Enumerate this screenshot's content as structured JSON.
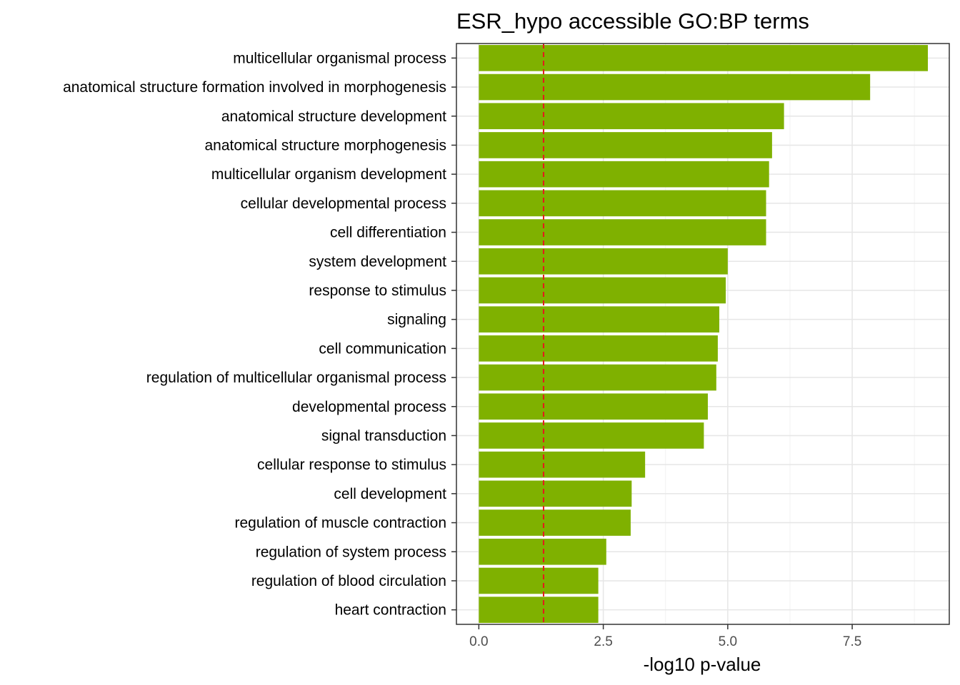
{
  "chart_data": {
    "type": "bar",
    "orientation": "horizontal",
    "title": "ESR_hypo accessible GO:BP terms",
    "xlabel": "-log10 p-value",
    "ylabel": "",
    "xlim": [
      -0.45,
      9.45
    ],
    "xticks": [
      0.0,
      2.5,
      5.0,
      7.5
    ],
    "xtick_labels": [
      "0.0",
      "2.5",
      "5.0",
      "7.5"
    ],
    "grid": true,
    "bar_color": "#7FB100",
    "reference_line": {
      "x": 1.3,
      "color": "#E41A1C",
      "style": "dashed"
    },
    "categories": [
      "multicellular organismal process",
      "anatomical structure formation involved in morphogenesis",
      "anatomical structure development",
      "anatomical structure morphogenesis",
      "multicellular organism development",
      "cellular developmental process",
      "cell differentiation",
      "system development",
      "response to stimulus",
      "signaling",
      "cell communication",
      "regulation of multicellular organismal process",
      "developmental process",
      "signal transduction",
      "cellular response to stimulus",
      "cell development",
      "regulation of muscle contraction",
      "regulation of system process",
      "regulation of blood circulation",
      "heart contraction"
    ],
    "values": [
      9.02,
      7.86,
      6.13,
      5.89,
      5.83,
      5.77,
      5.77,
      5.0,
      4.96,
      4.83,
      4.8,
      4.77,
      4.6,
      4.52,
      3.34,
      3.07,
      3.05,
      2.56,
      2.4,
      2.4
    ]
  }
}
